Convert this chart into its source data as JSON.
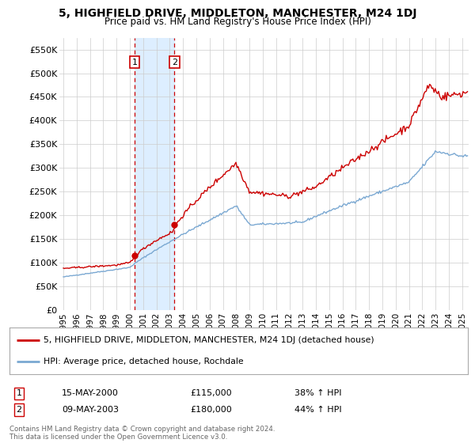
{
  "title": "5, HIGHFIELD DRIVE, MIDDLETON, MANCHESTER, M24 1DJ",
  "subtitle": "Price paid vs. HM Land Registry's House Price Index (HPI)",
  "legend_line1": "5, HIGHFIELD DRIVE, MIDDLETON, MANCHESTER, M24 1DJ (detached house)",
  "legend_line2": "HPI: Average price, detached house, Rochdale",
  "table_row1": [
    "1",
    "15-MAY-2000",
    "£115,000",
    "38% ↑ HPI"
  ],
  "table_row2": [
    "2",
    "09-MAY-2003",
    "£180,000",
    "44% ↑ HPI"
  ],
  "footer": "Contains HM Land Registry data © Crown copyright and database right 2024.\nThis data is licensed under the Open Government Licence v3.0.",
  "sale1_year": 2000.37,
  "sale1_price": 115000,
  "sale2_year": 2003.35,
  "sale2_price": 180000,
  "shade_x1": 2000.37,
  "shade_x2": 2003.35,
  "red_line_color": "#cc0000",
  "blue_line_color": "#7aa8d2",
  "shade_color": "#ddeeff",
  "grid_color": "#cccccc",
  "bg_color": "#ffffff",
  "ylim": [
    0,
    575000
  ],
  "yticks": [
    0,
    50000,
    100000,
    150000,
    200000,
    250000,
    300000,
    350000,
    400000,
    450000,
    500000,
    550000
  ],
  "xlim_start": 1994.7,
  "xlim_end": 2025.5
}
